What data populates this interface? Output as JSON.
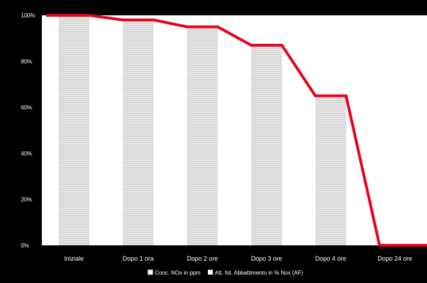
{
  "chart_data": {
    "type": "bar",
    "categories": [
      "Iniziale",
      "Dopo 1 ora",
      "Dopo 2 ore",
      "Dopo 3 ore",
      "Dopo 4 ore",
      "Dopo 24 ore"
    ],
    "ylim": [
      0,
      100
    ],
    "yticks": [
      0,
      20,
      40,
      60,
      80,
      100
    ],
    "ytick_labels": [
      "0%",
      "20%",
      "40%",
      "60%",
      "80%",
      "100%"
    ],
    "series": [
      {
        "name": "Conc. NOx in ppm",
        "type": "bar",
        "values": [
          100,
          98,
          95,
          87,
          65,
          0
        ]
      },
      {
        "name": "Att. fot. Abbattimento in % Nox (AF)",
        "type": "line",
        "values": [
          100,
          98,
          95,
          87,
          65,
          0
        ]
      }
    ],
    "grid": false,
    "legend_position": "bottom",
    "colors": {
      "background": "#000000",
      "plot_background": "#ffffff",
      "bar": "#e3e3e3",
      "bar_stripe": "#cfcfcf",
      "line": "#e8001c",
      "text": "#ffffff"
    }
  }
}
